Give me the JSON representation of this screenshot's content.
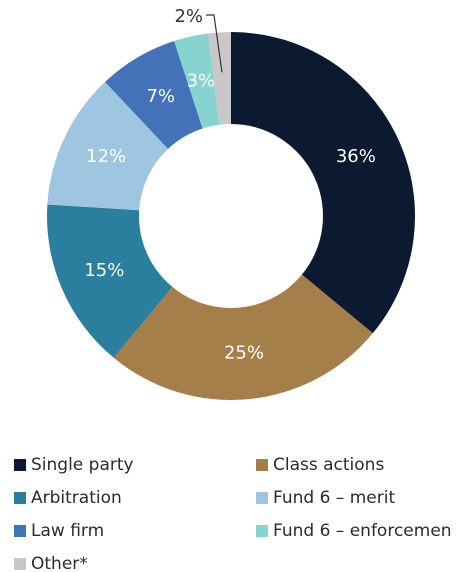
{
  "chart_data": {
    "type": "donut",
    "categories": [
      "Single party",
      "Class actions",
      "Arbitration",
      "Fund 6 – merit",
      "Law firm",
      "Fund 6 – enforcemen",
      "Other*"
    ],
    "values": [
      36,
      25,
      15,
      12,
      7,
      3,
      2
    ],
    "value_labels": [
      "36%",
      "25%",
      "15%",
      "12%",
      "7%",
      "3%",
      "2%"
    ],
    "colors": [
      "#0b1a30",
      "#a57f4a",
      "#2a7f9e",
      "#9fc6e0",
      "#4472b8",
      "#86d3cf",
      "#c8c8c8"
    ],
    "legend": "bottom"
  }
}
